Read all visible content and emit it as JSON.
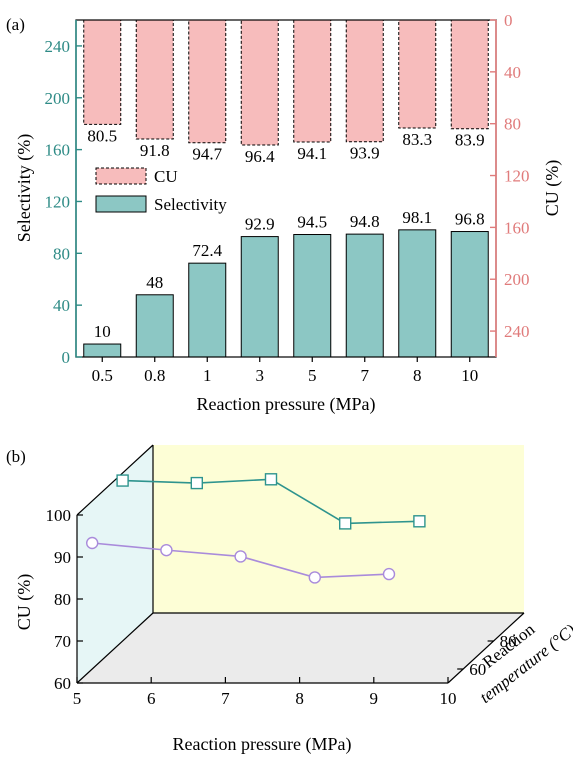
{
  "colors": {
    "selectivity_fill": "#8cc7c4",
    "cu_fill": "#f7bcbc",
    "selectivity_axis": "#2e8b86",
    "cu_axis": "#e07b7b",
    "series_80": "#2e948e",
    "series_60": "#a98bdb",
    "back_wall": "#fdfed6",
    "side_wall": "#e6f6f6",
    "floor": "#ebebeb"
  },
  "chart_data": [
    {
      "type": "bar",
      "panel_label": "(a)",
      "categories": [
        "0.5",
        "0.8",
        "1",
        "3",
        "5",
        "7",
        "8",
        "10"
      ],
      "xlabel": "Reaction pressure (MPa)",
      "ylabel_left": "Selectivity (%)",
      "ylabel_right": "CU (%)",
      "ylim_left": [
        0,
        260
      ],
      "yticks_left": [
        "0",
        "40",
        "80",
        "120",
        "160",
        "200",
        "240"
      ],
      "ylim_right_inverted": [
        0,
        260
      ],
      "yticks_right": [
        "0",
        "40",
        "80",
        "120",
        "160",
        "200",
        "240"
      ],
      "legend_position": "center-left",
      "series": [
        {
          "name": "Selectivity",
          "axis": "left",
          "values": [
            10,
            48,
            72.4,
            92.9,
            94.5,
            94.8,
            98.1,
            96.8
          ],
          "labels": [
            "10",
            "48",
            "72.4",
            "92.9",
            "94.5",
            "94.8",
            "98.1",
            "96.8"
          ]
        },
        {
          "name": "CU",
          "axis": "right",
          "values": [
            80.5,
            91.8,
            94.7,
            96.4,
            94.1,
            93.9,
            83.3,
            83.9
          ],
          "labels": [
            "80.5",
            "91.8",
            "94.7",
            "96.4",
            "94.1",
            "93.9",
            "83.3",
            "83.9"
          ]
        }
      ]
    },
    {
      "type": "line",
      "panel_label": "(b)",
      "xlabel": "Reaction pressure (MPa)",
      "ylabel": "CU (%)",
      "zlabel_line1": "Reaction",
      "zlabel_line2": "temperature (°C)",
      "xlim": [
        5,
        10
      ],
      "xticks": [
        "5",
        "6",
        "7",
        "8",
        "9",
        "10"
      ],
      "ylim": [
        60,
        100
      ],
      "yticks": [
        "60",
        "70",
        "80",
        "90",
        "100"
      ],
      "zticks": [
        "60",
        "80"
      ],
      "series": [
        {
          "marker": "square",
          "temperature": 80,
          "x": [
            5,
            6,
            7,
            8,
            9
          ],
          "y": [
            98.2,
            97.6,
            98.5,
            88.0,
            88.5
          ]
        },
        {
          "marker": "circle",
          "temperature": 60,
          "x": [
            5,
            6,
            7,
            8,
            9
          ],
          "y": [
            90,
            88.3,
            86.8,
            81.8,
            82.6
          ]
        }
      ]
    }
  ]
}
